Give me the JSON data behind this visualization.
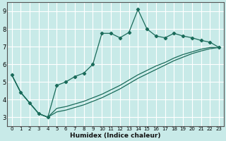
{
  "xlabel": "Humidex (Indice chaleur)",
  "background_color": "#c8eae8",
  "line_color": "#1a6b5a",
  "grid_color": "#ffffff",
  "xlim": [
    -0.5,
    23.5
  ],
  "ylim": [
    2.5,
    9.5
  ],
  "x_ticks": [
    0,
    1,
    2,
    3,
    4,
    5,
    6,
    7,
    8,
    9,
    10,
    11,
    12,
    13,
    14,
    15,
    16,
    17,
    18,
    19,
    20,
    21,
    22,
    23
  ],
  "y_ticks": [
    3,
    4,
    5,
    6,
    7,
    8,
    9
  ],
  "series1_x": [
    0,
    1,
    2,
    3,
    4,
    5,
    6,
    7,
    8,
    9,
    10,
    11,
    12,
    13,
    14,
    15,
    16,
    17,
    18,
    19,
    20,
    21,
    22,
    23
  ],
  "series1_y": [
    5.4,
    4.4,
    3.8,
    3.2,
    3.0,
    4.8,
    5.0,
    5.3,
    5.5,
    6.0,
    7.75,
    7.75,
    7.5,
    7.8,
    9.1,
    8.0,
    7.6,
    7.5,
    7.75,
    7.6,
    7.5,
    7.35,
    7.25,
    6.95
  ],
  "series2_x": [
    0,
    1,
    2,
    3,
    4,
    5,
    6,
    7,
    8,
    9,
    10,
    11,
    12,
    13,
    14,
    15,
    16,
    17,
    18,
    19,
    20,
    21,
    22,
    23
  ],
  "series2_y": [
    5.4,
    4.4,
    3.8,
    3.2,
    3.0,
    3.5,
    3.6,
    3.75,
    3.9,
    4.1,
    4.3,
    4.55,
    4.8,
    5.1,
    5.4,
    5.65,
    5.9,
    6.1,
    6.35,
    6.55,
    6.7,
    6.85,
    6.95,
    6.95
  ],
  "series3_x": [
    0,
    1,
    2,
    3,
    4,
    5,
    6,
    7,
    8,
    9,
    10,
    11,
    12,
    13,
    14,
    15,
    16,
    17,
    18,
    19,
    20,
    21,
    22,
    23
  ],
  "series3_y": [
    5.4,
    4.4,
    3.8,
    3.2,
    3.0,
    3.3,
    3.4,
    3.55,
    3.7,
    3.9,
    4.1,
    4.35,
    4.6,
    4.9,
    5.2,
    5.45,
    5.7,
    5.95,
    6.2,
    6.4,
    6.6,
    6.75,
    6.88,
    6.95
  ]
}
